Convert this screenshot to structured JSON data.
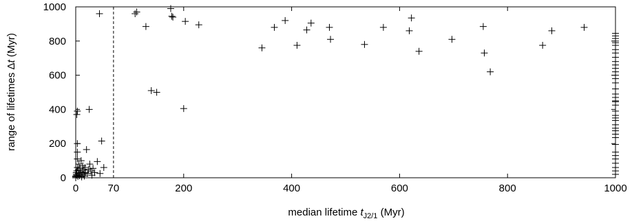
{
  "chart_data": {
    "type": "scatter",
    "xlabel": {
      "pre": "median lifetime ",
      "var": "t",
      "sub": "J2/1",
      "post": " (Myr)"
    },
    "ylabel": {
      "pre": "range of lifetimes Δ",
      "var": "t",
      "post": " (Myr)"
    },
    "xlim": [
      0,
      1000
    ],
    "ylim": [
      0,
      1000
    ],
    "xticks": [
      0,
      200,
      400,
      600,
      800,
      1000
    ],
    "yticks": [
      0,
      200,
      400,
      600,
      800,
      1000
    ],
    "grid": false,
    "marker": "+",
    "annotation": {
      "x": 70,
      "label": "70",
      "style": "dashed-vertical-line"
    },
    "points": [
      [
        0,
        0
      ],
      [
        0,
        5
      ],
      [
        0,
        10
      ],
      [
        1,
        20
      ],
      [
        1,
        30
      ],
      [
        2,
        15
      ],
      [
        2,
        40
      ],
      [
        3,
        60
      ],
      [
        3,
        110
      ],
      [
        3,
        150
      ],
      [
        3,
        200
      ],
      [
        2,
        370
      ],
      [
        3,
        390
      ],
      [
        4,
        8
      ],
      [
        5,
        25
      ],
      [
        5,
        45
      ],
      [
        6,
        80
      ],
      [
        7,
        12
      ],
      [
        8,
        55
      ],
      [
        9,
        30
      ],
      [
        10,
        100
      ],
      [
        11,
        5
      ],
      [
        12,
        35
      ],
      [
        13,
        70
      ],
      [
        14,
        20
      ],
      [
        15,
        45
      ],
      [
        16,
        10
      ],
      [
        17,
        60
      ],
      [
        18,
        30
      ],
      [
        20,
        165
      ],
      [
        22,
        25
      ],
      [
        24,
        50
      ],
      [
        26,
        80
      ],
      [
        28,
        40
      ],
      [
        30,
        15
      ],
      [
        32,
        55
      ],
      [
        35,
        30
      ],
      [
        40,
        95
      ],
      [
        45,
        25
      ],
      [
        48,
        215
      ],
      [
        52,
        60
      ],
      [
        25,
        400
      ],
      [
        44,
        960
      ],
      [
        110,
        960
      ],
      [
        113,
        970
      ],
      [
        130,
        885
      ],
      [
        140,
        510
      ],
      [
        150,
        500
      ],
      [
        176,
        990
      ],
      [
        178,
        945
      ],
      [
        180,
        940
      ],
      [
        200,
        405
      ],
      [
        203,
        915
      ],
      [
        228,
        895
      ],
      [
        345,
        760
      ],
      [
        368,
        880
      ],
      [
        388,
        920
      ],
      [
        410,
        775
      ],
      [
        428,
        865
      ],
      [
        436,
        905
      ],
      [
        470,
        880
      ],
      [
        472,
        810
      ],
      [
        535,
        780
      ],
      [
        570,
        880
      ],
      [
        618,
        860
      ],
      [
        622,
        935
      ],
      [
        636,
        740
      ],
      [
        697,
        810
      ],
      [
        755,
        885
      ],
      [
        757,
        730
      ],
      [
        768,
        620
      ],
      [
        865,
        775
      ],
      [
        882,
        860
      ],
      [
        942,
        880
      ],
      [
        1000,
        20
      ],
      [
        1000,
        40
      ],
      [
        1000,
        60
      ],
      [
        1000,
        85
      ],
      [
        1000,
        110
      ],
      [
        1000,
        130
      ],
      [
        1000,
        150
      ],
      [
        1000,
        195
      ],
      [
        1000,
        235
      ],
      [
        1000,
        255
      ],
      [
        1000,
        275
      ],
      [
        1000,
        290
      ],
      [
        1000,
        310
      ],
      [
        1000,
        335
      ],
      [
        1000,
        350
      ],
      [
        1000,
        365
      ],
      [
        1000,
        390
      ],
      [
        1000,
        425
      ],
      [
        1000,
        445
      ],
      [
        1000,
        450
      ],
      [
        1000,
        470
      ],
      [
        1000,
        490
      ],
      [
        1000,
        520
      ],
      [
        1000,
        555
      ],
      [
        1000,
        580
      ],
      [
        1000,
        600
      ],
      [
        1000,
        620
      ],
      [
        1000,
        640
      ],
      [
        1000,
        660
      ],
      [
        1000,
        680
      ],
      [
        1000,
        705
      ],
      [
        1000,
        730
      ],
      [
        1000,
        750
      ],
      [
        1000,
        775
      ],
      [
        1000,
        790
      ],
      [
        1000,
        800
      ],
      [
        1000,
        815
      ],
      [
        1000,
        830
      ],
      [
        1000,
        845
      ]
    ]
  }
}
